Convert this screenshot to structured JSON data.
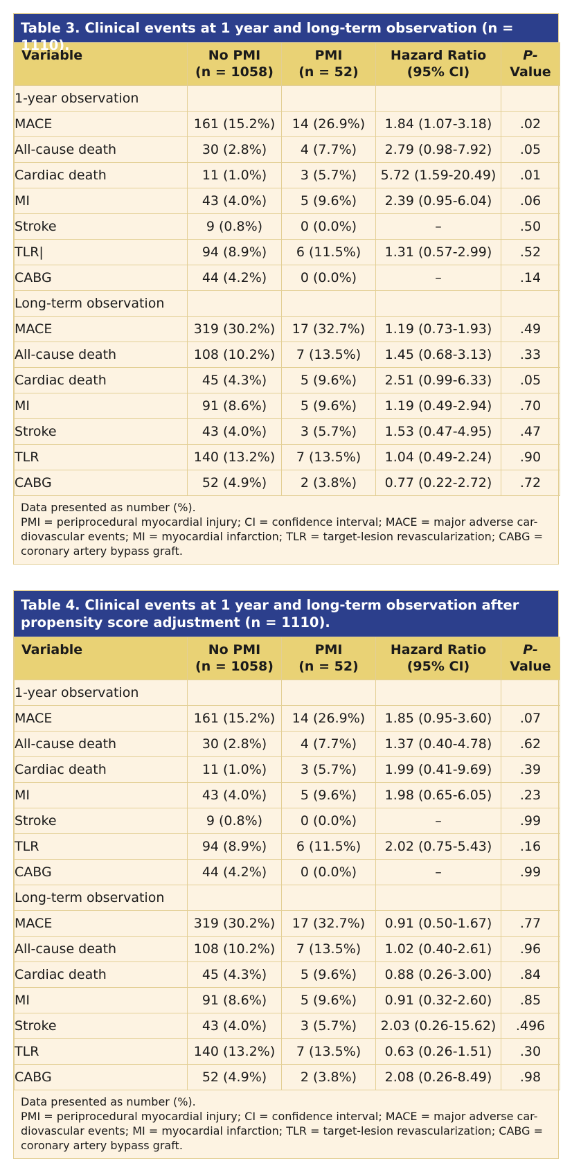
{
  "headers": {
    "variable": "Variable",
    "no_pmi": "No PMI",
    "no_pmi_n": "(n = 1058)",
    "pmi": "PMI",
    "pmi_n": "(n = 52)",
    "hr": "Hazard Ratio",
    "hr_ci": "(95% CI)",
    "p": "P-",
    "p2": "Value"
  },
  "sections": {
    "one_year": "1-year observation",
    "long_term": "Long-term observation"
  },
  "labels": {
    "mace": "MACE",
    "acd": "All-cause death",
    "cd": "Cardiac death",
    "mi": "MI",
    "stroke": "Stroke",
    "tlr": "TLR",
    "tlr_cursor": "TLR|",
    "cabg": "CABG"
  },
  "footnote": {
    "line1": "Data presented as number (%).",
    "line2": "PMI = periprocedural myocardial injury; CI = confidence interval; MACE = major adverse car-diovascular events; MI = myocardial infarction; TLR = target-lesion revascularization; CABG = coronary artery bypass graft."
  },
  "table3": {
    "title": "Table 3. Clinical events at 1 year and long-term observation (n = 1110).",
    "one_year": [
      {
        "nopmi": "161 (15.2%)",
        "pmi": "14 (26.9%)",
        "hr": "1.84 (1.07-3.18)",
        "p": ".02"
      },
      {
        "nopmi": "30 (2.8%)",
        "pmi": "4 (7.7%)",
        "hr": "2.79 (0.98-7.92)",
        "p": ".05"
      },
      {
        "nopmi": "11 (1.0%)",
        "pmi": "3 (5.7%)",
        "hr": "5.72 (1.59-20.49)",
        "p": ".01"
      },
      {
        "nopmi": "43 (4.0%)",
        "pmi": "5 (9.6%)",
        "hr": "2.39 (0.95-6.04)",
        "p": ".06"
      },
      {
        "nopmi": "9 (0.8%)",
        "pmi": "0 (0.0%)",
        "hr": "–",
        "p": ".50"
      },
      {
        "nopmi": "94 (8.9%)",
        "pmi": "6 (11.5%)",
        "hr": "1.31 (0.57-2.99)",
        "p": ".52"
      },
      {
        "nopmi": "44 (4.2%)",
        "pmi": "0 (0.0%)",
        "hr": "–",
        "p": ".14"
      }
    ],
    "long_term": [
      {
        "nopmi": "319 (30.2%)",
        "pmi": "17 (32.7%)",
        "hr": "1.19 (0.73-1.93)",
        "p": ".49"
      },
      {
        "nopmi": "108 (10.2%)",
        "pmi": "7 (13.5%)",
        "hr": "1.45 (0.68-3.13)",
        "p": ".33"
      },
      {
        "nopmi": "45 (4.3%)",
        "pmi": "5 (9.6%)",
        "hr": "2.51 (0.99-6.33)",
        "p": ".05"
      },
      {
        "nopmi": "91 (8.6%)",
        "pmi": "5 (9.6%)",
        "hr": "1.19 (0.49-2.94)",
        "p": ".70"
      },
      {
        "nopmi": "43 (4.0%)",
        "pmi": "3 (5.7%)",
        "hr": "1.53 (0.47-4.95)",
        "p": ".47"
      },
      {
        "nopmi": "140 (13.2%)",
        "pmi": "7 (13.5%)",
        "hr": "1.04 (0.49-2.24)",
        "p": ".90"
      },
      {
        "nopmi": "52 (4.9%)",
        "pmi": "2 (3.8%)",
        "hr": "0.77 (0.22-2.72)",
        "p": ".72"
      }
    ]
  },
  "table4": {
    "title": "Table 4. Clinical events at 1 year and long-term observation after propensity score adjustment (n = 1110).",
    "one_year": [
      {
        "nopmi": "161 (15.2%)",
        "pmi": "14 (26.9%)",
        "hr": "1.85 (0.95-3.60)",
        "p": ".07"
      },
      {
        "nopmi": "30 (2.8%)",
        "pmi": "4 (7.7%)",
        "hr": "1.37 (0.40-4.78)",
        "p": ".62"
      },
      {
        "nopmi": "11 (1.0%)",
        "pmi": "3 (5.7%)",
        "hr": "1.99 (0.41-9.69)",
        "p": ".39"
      },
      {
        "nopmi": "43 (4.0%)",
        "pmi": "5 (9.6%)",
        "hr": "1.98 (0.65-6.05)",
        "p": ".23"
      },
      {
        "nopmi": "9 (0.8%)",
        "pmi": "0 (0.0%)",
        "hr": "–",
        "p": ".99"
      },
      {
        "nopmi": "94 (8.9%)",
        "pmi": "6 (11.5%)",
        "hr": "2.02 (0.75-5.43)",
        "p": ".16"
      },
      {
        "nopmi": "44 (4.2%)",
        "pmi": "0 (0.0%)",
        "hr": "–",
        "p": ".99"
      }
    ],
    "long_term": [
      {
        "nopmi": "319 (30.2%)",
        "pmi": "17 (32.7%)",
        "hr": "0.91 (0.50-1.67)",
        "p": ".77"
      },
      {
        "nopmi": "108 (10.2%)",
        "pmi": "7 (13.5%)",
        "hr": "1.02 (0.40-2.61)",
        "p": ".96"
      },
      {
        "nopmi": "45 (4.3%)",
        "pmi": "5 (9.6%)",
        "hr": "0.88 (0.26-3.00)",
        "p": ".84"
      },
      {
        "nopmi": "91 (8.6%)",
        "pmi": "5 (9.6%)",
        "hr": "0.91 (0.32-2.60)",
        "p": ".85"
      },
      {
        "nopmi": "43 (4.0%)",
        "pmi": "3 (5.7%)",
        "hr": "2.03 (0.26-15.62)",
        "p": ".496"
      },
      {
        "nopmi": "140 (13.2%)",
        "pmi": "7 (13.5%)",
        "hr": "0.63 (0.26-1.51)",
        "p": ".30"
      },
      {
        "nopmi": "52 (4.9%)",
        "pmi": "2 (3.8%)",
        "hr": "2.08 (0.26-8.49)",
        "p": ".98"
      }
    ]
  }
}
